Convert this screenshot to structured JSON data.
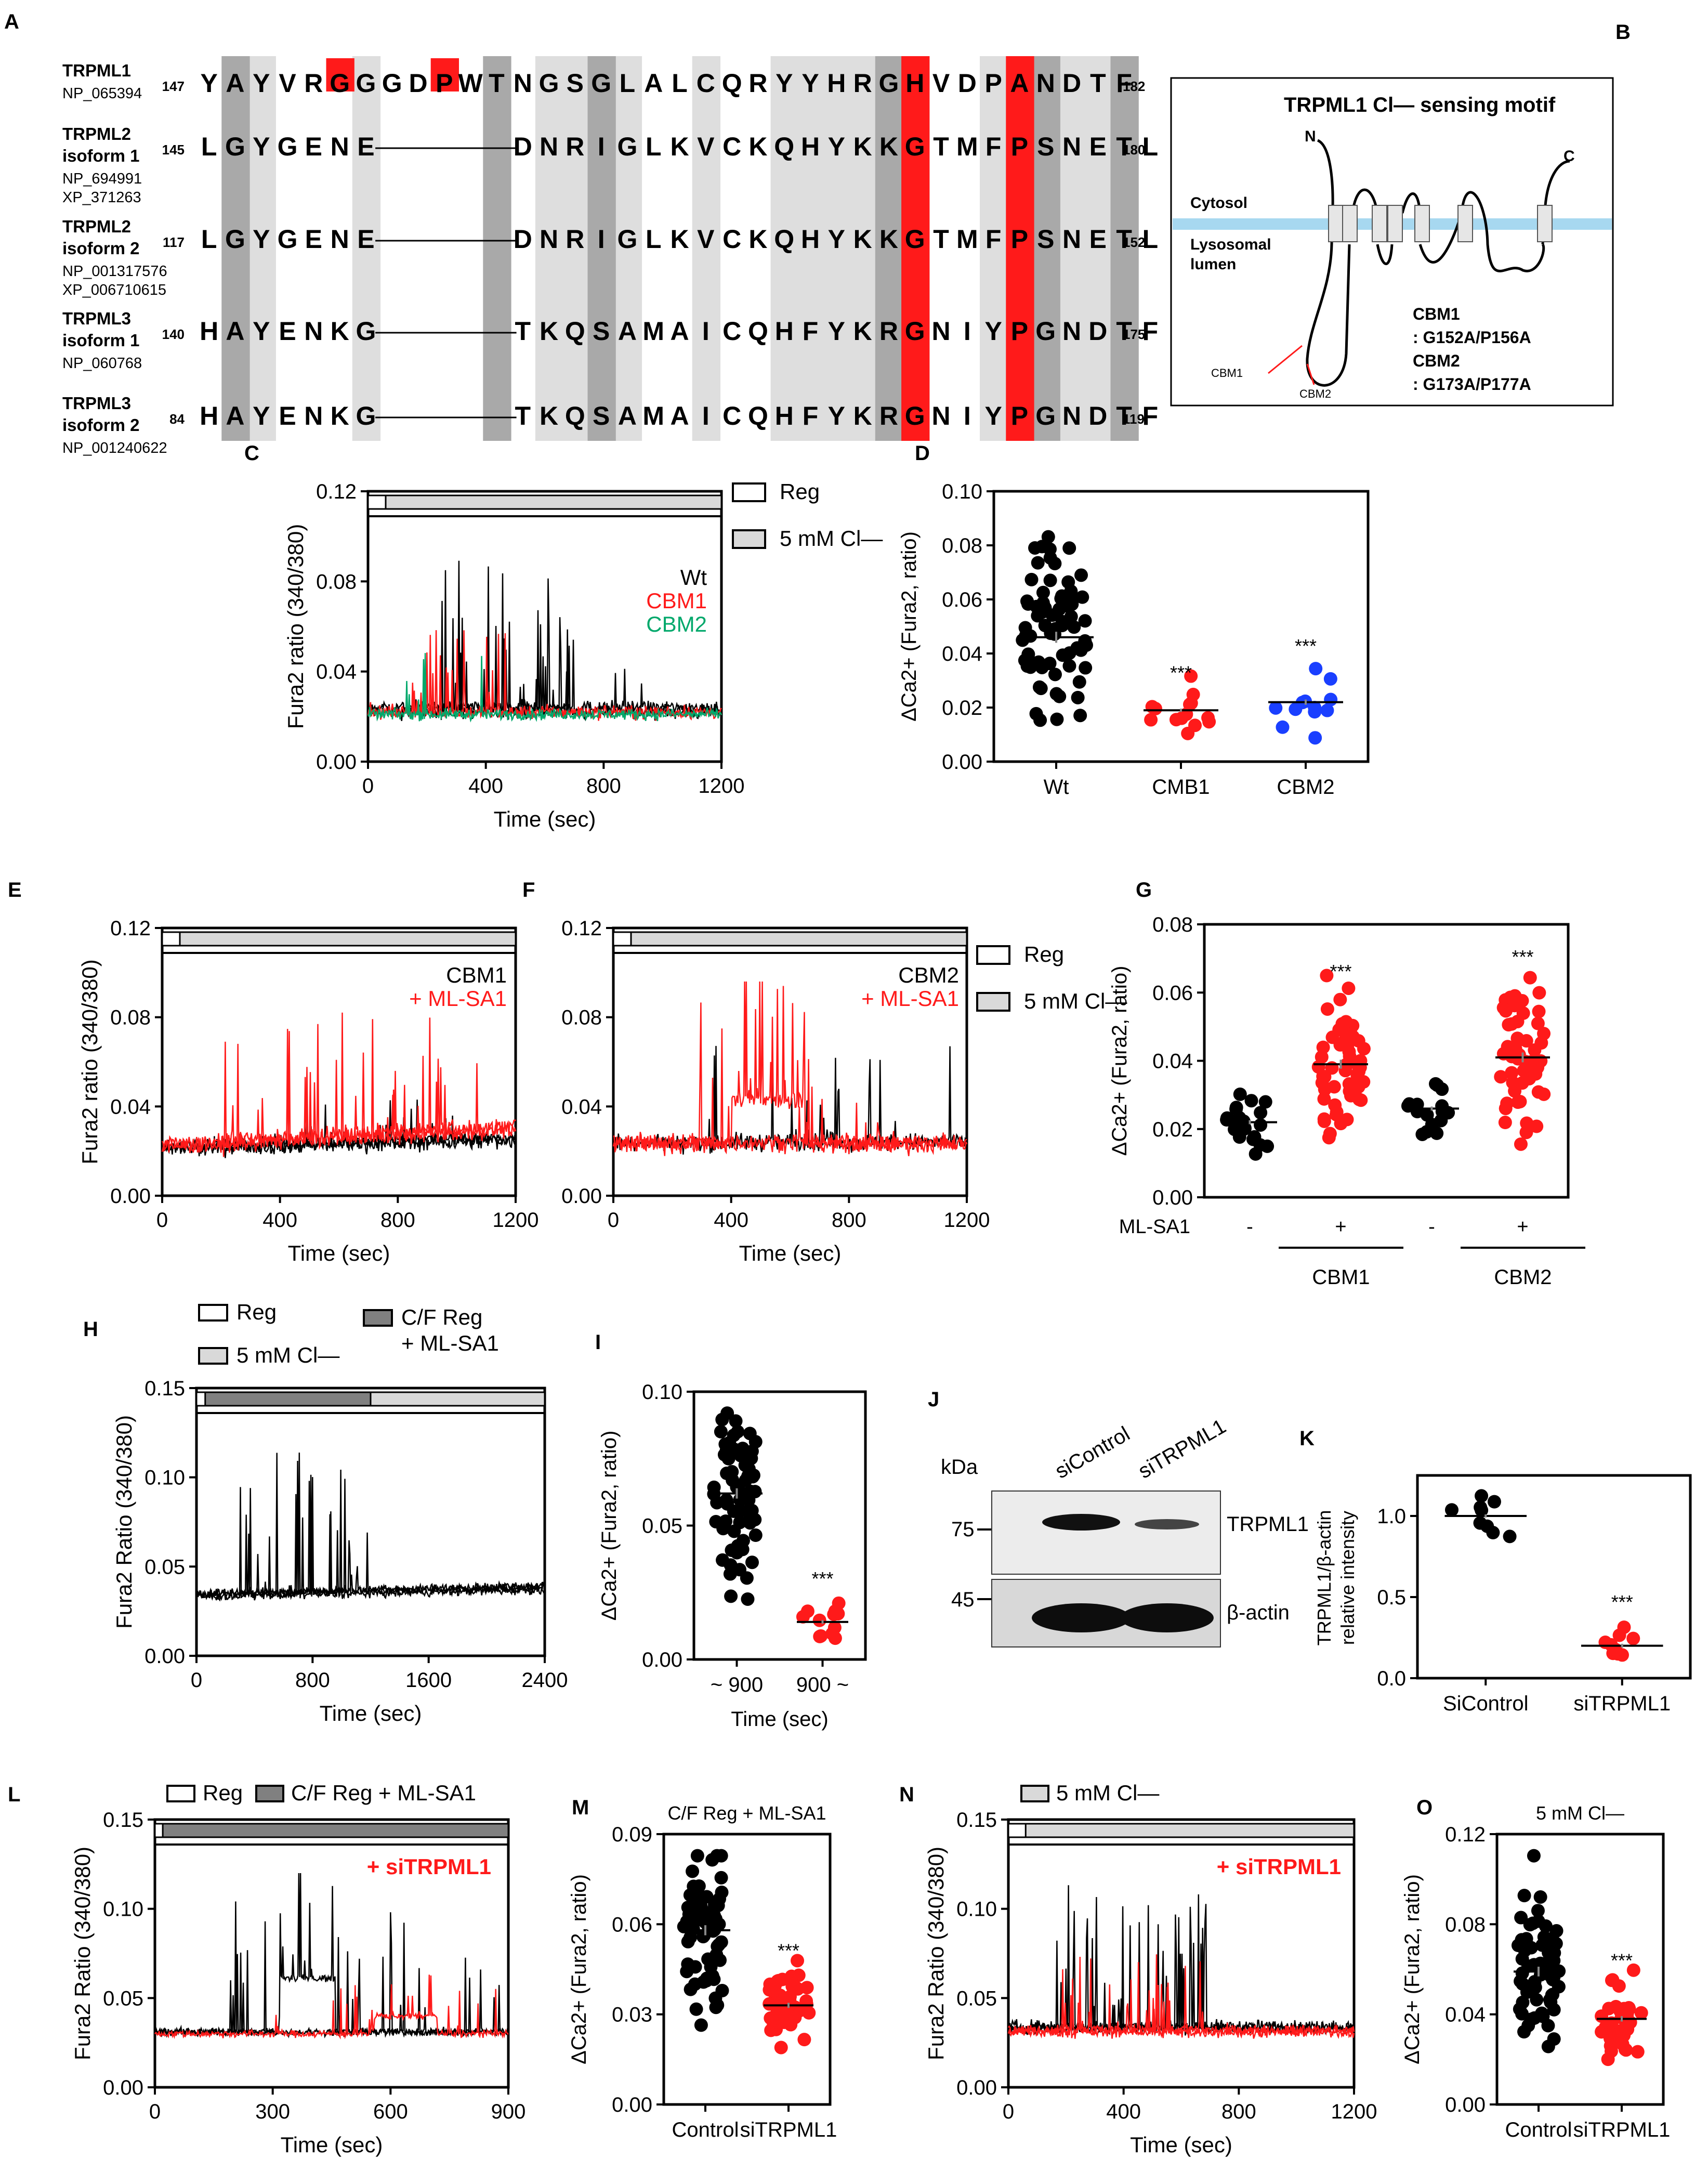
{
  "panel_letters": {
    "A": "A",
    "B": "B",
    "C": "C",
    "D": "D",
    "E": "E",
    "F": "F",
    "G": "G",
    "H": "H",
    "I": "I",
    "J": "J",
    "K": "K",
    "L": "L",
    "M": "M",
    "N": "N",
    "O": "O"
  },
  "alignment": {
    "rows": [
      {
        "name": [
          "TRPML1"
        ],
        "acc": [
          "NP_065394"
        ],
        "start": "147",
        "end": "182",
        "seq": "YAYVRGGGDPWTNGSGLALCQRYYHRGHVDPANDTF"
      },
      {
        "name": [
          "TRPML2",
          "isoform 1"
        ],
        "acc": [
          "NP_694991",
          "XP_371263"
        ],
        "start": "145",
        "end": "180",
        "seq": "LGYGENE-----DNRIGLKVCKQHYKKGTMFPSNETL"
      },
      {
        "name": [
          "TRPML2",
          "isoform 2"
        ],
        "acc": [
          "NP_001317576",
          "XP_006710615"
        ],
        "start": "117",
        "end": "152",
        "seq": "LGYGENE-----DNRIGLKVCKQHYKKGTMFPSNETL"
      },
      {
        "name": [
          "TRPML3",
          "isoform 1"
        ],
        "acc": [
          "NP_060768"
        ],
        "start": "140",
        "end": "175",
        "seq": "HAYENKG-----TKQSAMAICQHFYKRGNIYPGNDTF"
      },
      {
        "name": [
          "TRPML3",
          "isoform 2"
        ],
        "acc": [
          "NP_001240622"
        ],
        "start": "84",
        "end": "119",
        "seq": "HAYENKG-----TKQSAMAICQHFYKRGNIYPGNDTF"
      }
    ]
  },
  "motif": {
    "title": "TRPML1 Cl— sensing motif",
    "n": "N",
    "c": "C",
    "cytosol": "Cytosol",
    "lumen": [
      "Lysosomal",
      "lumen"
    ],
    "cbm1": "CBM1",
    "cbm2": "CBM2",
    "mut": [
      "CBM1",
      ": G152A/P156A",
      "CBM2",
      ": G173A/P177A"
    ]
  },
  "legend": {
    "reg": "Reg",
    "cl": "5 mM Cl—",
    "cf": [
      "C/F Reg",
      "+ ML-SA1"
    ],
    "cf_inline": "C/F Reg  + ML-SA1"
  },
  "colors": {
    "black": "#000000",
    "red": "#ff1a1a",
    "green": "#00a86b",
    "blue": "#1a3fff",
    "grey_bar": "#d9d9d9",
    "dark_bar": "#808080",
    "motif_red": "#ff1a1a"
  },
  "chart_data": [
    {
      "id": "C",
      "type": "line",
      "xlabel": "Time (sec)",
      "ylabel": "Fura2 ratio (340/380)",
      "xlim": [
        0,
        1200
      ],
      "ylim": [
        0,
        0.12
      ],
      "xticks": [
        "0",
        "400",
        "800",
        "1200"
      ],
      "yticks": [
        "0.00",
        "0.04",
        "0.08",
        "0.12"
      ],
      "series": [
        {
          "name": "Wt",
          "color": "black",
          "peak": 0.092
        },
        {
          "name": "CBM1",
          "color": "red",
          "peak": 0.06
        },
        {
          "name": "CBM2",
          "color": "green",
          "peak": 0.05
        }
      ],
      "labels": [
        "Wt",
        "CBM1",
        "CBM2"
      ]
    },
    {
      "id": "D",
      "type": "scatter",
      "ylabel": "ΔCa2+ (Fura2, ratio)",
      "ylim": [
        0,
        0.1
      ],
      "yticks": [
        "0.00",
        "0.02",
        "0.04",
        "0.06",
        "0.08",
        "0.10"
      ],
      "categories": [
        "Wt",
        "CMB1",
        "CBM2"
      ],
      "means": [
        0.046,
        0.019,
        0.022
      ],
      "n": [
        70,
        14,
        12
      ],
      "stars": [
        "",
        "***",
        "***"
      ]
    },
    {
      "id": "E",
      "type": "line",
      "xlabel": "Time (sec)",
      "ylabel": "Fura2 ratio (340/380)",
      "xlim": [
        0,
        1200
      ],
      "ylim": [
        0,
        0.12
      ],
      "xticks": [
        "0",
        "400",
        "800",
        "1200"
      ],
      "yticks": [
        "0.00",
        "0.04",
        "0.08",
        "0.12"
      ],
      "labels": [
        "CBM1",
        "+ ML-SA1"
      ]
    },
    {
      "id": "F",
      "type": "line",
      "xlabel": "Time (sec)",
      "xlim": [
        0,
        1200
      ],
      "ylim": [
        0,
        0.12
      ],
      "xticks": [
        "0",
        "400",
        "800",
        "1200"
      ],
      "yticks": [
        "0.00",
        "0.04",
        "0.08",
        "0.12"
      ],
      "labels": [
        "CBM2",
        "+ ML-SA1"
      ]
    },
    {
      "id": "G",
      "type": "scatter",
      "ylabel": "ΔCa2+ (Fura2, ratio)",
      "ylim": [
        0,
        0.08
      ],
      "yticks": [
        "0.00",
        "0.02",
        "0.04",
        "0.06",
        "0.08"
      ],
      "mlsa1": [
        "-",
        "+",
        "-",
        "+"
      ],
      "row_label": "ML-SA1",
      "groups": [
        "CBM1",
        "CBM2"
      ],
      "means": [
        0.022,
        0.039,
        0.026,
        0.041
      ],
      "n": [
        22,
        55,
        16,
        55
      ],
      "stars": [
        "",
        "***",
        "",
        "***"
      ]
    },
    {
      "id": "H",
      "type": "line",
      "xlabel": "Time (sec)",
      "ylabel": "Fura2 Ratio (340/380)",
      "xlim": [
        0,
        2400
      ],
      "ylim": [
        0,
        0.15
      ],
      "xticks": [
        "0",
        "800",
        "1600",
        "2400"
      ],
      "yticks": [
        "0.00",
        "0.05",
        "0.10",
        "0.15"
      ]
    },
    {
      "id": "I",
      "type": "scatter",
      "ylabel": "ΔCa2+ (Fura2, ratio)",
      "xlabel": "Time (sec)",
      "ylim": [
        0,
        0.1
      ],
      "yticks": [
        "0.00",
        "0.05",
        "0.10"
      ],
      "categories": [
        "~ 900",
        "900 ~"
      ],
      "means": [
        0.062,
        0.014
      ],
      "n": [
        70,
        12
      ],
      "stars": [
        "",
        "***"
      ]
    },
    {
      "id": "J",
      "type": "blot",
      "kda": "kDa",
      "markers": [
        "75",
        "45"
      ],
      "lanes": [
        "siControl",
        "siTRPML1"
      ],
      "bands": [
        "TRPML1",
        "β-actin"
      ]
    },
    {
      "id": "K",
      "type": "scatter",
      "ylabel": [
        "TRPML1/β-actin",
        "relative intensity"
      ],
      "ylim": [
        0,
        1.25
      ],
      "yticks": [
        "0.0",
        "0.5",
        "1.0"
      ],
      "categories": [
        "SiControl",
        "siTRPML1"
      ],
      "means": [
        1.0,
        0.2
      ],
      "n": [
        9,
        9
      ],
      "stars": [
        "",
        "***"
      ]
    },
    {
      "id": "L",
      "type": "line",
      "xlabel": "Time (sec)",
      "ylabel": "Fura2 Ratio (340/380)",
      "xlim": [
        0,
        900
      ],
      "ylim": [
        0,
        0.15
      ],
      "xticks": [
        "0",
        "300",
        "600",
        "900"
      ],
      "yticks": [
        "0.00",
        "0.05",
        "0.10",
        "0.15"
      ],
      "labels": [
        "+ siTRPML1"
      ]
    },
    {
      "id": "M",
      "type": "scatter",
      "title": "C/F Reg + ML-SA1",
      "ylabel": "ΔCa2+ (Fura2, ratio)",
      "ylim": [
        0,
        0.09
      ],
      "yticks": [
        "0.00",
        "0.03",
        "0.06",
        "0.09"
      ],
      "categories": [
        "Control",
        "siTRPML1"
      ],
      "means": [
        0.058,
        0.033
      ],
      "n": [
        70,
        40
      ],
      "stars": [
        "",
        "***"
      ]
    },
    {
      "id": "N",
      "type": "line",
      "xlabel": "Time (sec)",
      "ylabel": "Fura2 Ratio (340/380)",
      "xlim": [
        0,
        1200
      ],
      "ylim": [
        0,
        0.15
      ],
      "xticks": [
        "0",
        "400",
        "800",
        "1200"
      ],
      "yticks": [
        "0.00",
        "0.05",
        "0.10",
        "0.15"
      ],
      "labels": [
        "+ siTRPML1"
      ]
    },
    {
      "id": "O",
      "type": "scatter",
      "title": "5 mM  Cl—",
      "ylabel": "ΔCa2+ (Fura2, ratio)",
      "ylim": [
        0,
        0.12
      ],
      "yticks": [
        "0.00",
        "0.04",
        "0.08",
        "0.12"
      ],
      "categories": [
        "Control",
        "siTRPML1"
      ],
      "means": [
        0.059,
        0.038
      ],
      "n": [
        70,
        35
      ],
      "stars": [
        "",
        "***"
      ]
    }
  ]
}
